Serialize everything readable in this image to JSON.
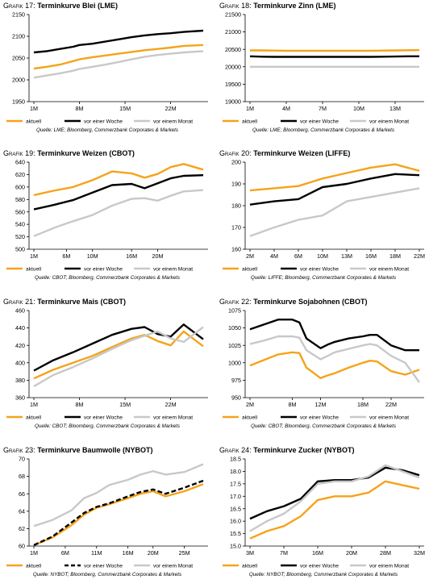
{
  "legend": {
    "labels": [
      "aktuell",
      "vor einer Woche",
      "vor einem Monat"
    ]
  },
  "colors": {
    "aktuell": "#f5a31a",
    "vor_einer_woche": "#000000",
    "vor_einem_monat": "#c8c8c8"
  },
  "chart_data": [
    {
      "type": "line",
      "prefix": "Grafik 17:",
      "title": "Terminkurve Blei (LME)",
      "source": "Quelle: LME; Bloomberg, Commerzbank Corporates & Markets",
      "ylim": [
        1950,
        2150
      ],
      "yticks": [
        "1950",
        "2000",
        "2050",
        "2100",
        "2150"
      ],
      "xlabels": [
        "1M",
        "8M",
        "15M",
        "22M"
      ],
      "xlabel_positions": [
        1,
        8,
        15,
        22
      ],
      "xlim": [
        1,
        27
      ],
      "series": [
        {
          "name": "aktuell",
          "x": [
            1,
            3,
            5,
            7,
            8,
            10,
            12,
            14,
            16,
            18,
            20,
            22,
            24,
            27
          ],
          "values": [
            2026,
            2030,
            2035,
            2043,
            2047,
            2052,
            2056,
            2060,
            2064,
            2068,
            2071,
            2074,
            2078,
            2080
          ]
        },
        {
          "name": "vor einer Woche",
          "x": [
            1,
            3,
            5,
            7,
            8,
            10,
            12,
            14,
            16,
            18,
            20,
            22,
            24,
            27
          ],
          "values": [
            2063,
            2066,
            2071,
            2076,
            2080,
            2083,
            2088,
            2093,
            2098,
            2102,
            2105,
            2107,
            2110,
            2113
          ]
        },
        {
          "name": "vor einem Monat",
          "x": [
            1,
            3,
            5,
            7,
            8,
            10,
            12,
            14,
            16,
            18,
            20,
            22,
            24,
            27
          ],
          "values": [
            2005,
            2010,
            2015,
            2021,
            2025,
            2030,
            2035,
            2041,
            2047,
            2053,
            2057,
            2060,
            2063,
            2066
          ]
        }
      ]
    },
    {
      "type": "line",
      "prefix": "Grafik 18:",
      "title": "Terminkurve Zinn (LME)",
      "source": "Quelle: LME; Bloomberg, Commerzbank Corporates & Markets",
      "ylim": [
        19000,
        21500
      ],
      "yticks": [
        "19000",
        "19500",
        "20000",
        "20500",
        "21000",
        "21500"
      ],
      "xlabels": [
        "1M",
        "4M",
        "7M",
        "10M",
        "13M"
      ],
      "xlabel_positions": [
        1,
        4,
        7,
        10,
        13
      ],
      "xlim": [
        1,
        15
      ],
      "series": [
        {
          "name": "aktuell",
          "x": [
            1,
            2,
            3,
            4,
            5,
            6,
            7,
            8,
            9,
            10,
            11,
            12,
            13,
            14,
            15
          ],
          "values": [
            20470,
            20470,
            20465,
            20460,
            20460,
            20460,
            20460,
            20460,
            20460,
            20460,
            20460,
            20465,
            20470,
            20475,
            20480
          ]
        },
        {
          "name": "vor einer Woche",
          "x": [
            1,
            2,
            3,
            4,
            5,
            6,
            7,
            8,
            9,
            10,
            11,
            12,
            13,
            14,
            15
          ],
          "values": [
            20300,
            20290,
            20285,
            20285,
            20285,
            20285,
            20285,
            20285,
            20285,
            20285,
            20285,
            20290,
            20295,
            20300,
            20300
          ]
        },
        {
          "name": "vor einem Monat",
          "x": [
            1,
            2,
            3,
            4,
            5,
            6,
            7,
            8,
            9,
            10,
            11,
            12,
            13,
            14,
            15
          ],
          "values": [
            20000,
            20000,
            20000,
            20000,
            20000,
            20000,
            20000,
            20000,
            20000,
            20000,
            20000,
            20000,
            20000,
            20000,
            20000
          ]
        }
      ]
    },
    {
      "type": "line",
      "prefix": "Grafik 19:",
      "title": "Terminkurve Weizen (CBOT)",
      "source": "Quelle: CBOT; Bloomberg, Commerzbank Corporates & Markets",
      "ylim": [
        500,
        640
      ],
      "yticks": [
        "500",
        "520",
        "540",
        "560",
        "580",
        "600",
        "620",
        "640"
      ],
      "xlabels": [
        "1M",
        "6M",
        "10M",
        "16M",
        "20M"
      ],
      "xlabel_positions": [
        1,
        6,
        10,
        16,
        20
      ],
      "xlim": [
        1,
        27
      ],
      "series": [
        {
          "name": "aktuell",
          "x": [
            1,
            4,
            7,
            10,
            13,
            16,
            18,
            20,
            22,
            24,
            27
          ],
          "values": [
            587,
            594,
            600,
            611,
            625,
            622,
            615,
            621,
            632,
            637,
            628
          ]
        },
        {
          "name": "vor einer Woche",
          "x": [
            1,
            4,
            7,
            10,
            13,
            16,
            18,
            20,
            22,
            24,
            27
          ],
          "values": [
            564,
            571,
            579,
            591,
            603,
            605,
            598,
            606,
            614,
            618,
            619
          ]
        },
        {
          "name": "vor einem Monat",
          "x": [
            1,
            4,
            7,
            10,
            13,
            16,
            18,
            20,
            22,
            24,
            27
          ],
          "values": [
            521,
            534,
            545,
            555,
            570,
            581,
            582,
            578,
            586,
            593,
            595
          ]
        }
      ]
    },
    {
      "type": "line",
      "prefix": "Grafik 20:",
      "title": "Terminkurve Weizen (LIFFE)",
      "source": "Quelle: LIFFE; Bloomberg, Commerzbank Corporates & Markets",
      "ylim": [
        160,
        200
      ],
      "yticks": [
        "160",
        "170",
        "180",
        "190",
        "200"
      ],
      "xlabels": [
        "2M",
        "4M",
        "6M",
        "10M",
        "13M",
        "16M",
        "18M",
        "22M"
      ],
      "xlabel_positions": [
        1,
        2,
        3,
        4,
        5,
        6,
        7,
        8
      ],
      "xlim": [
        1,
        8
      ],
      "series": [
        {
          "name": "aktuell",
          "x": [
            1,
            2,
            3,
            4,
            5,
            6,
            7,
            8
          ],
          "values": [
            187,
            188,
            189,
            192.5,
            195,
            197.5,
            199,
            196
          ]
        },
        {
          "name": "vor einer Woche",
          "x": [
            1,
            2,
            3,
            4,
            5,
            6,
            7,
            8
          ],
          "values": [
            180.5,
            182,
            183,
            188.5,
            190,
            192.5,
            194.5,
            194
          ]
        },
        {
          "name": "vor einem Monat",
          "x": [
            1,
            2,
            3,
            4,
            5,
            6,
            7,
            8
          ],
          "values": [
            166,
            170,
            173.5,
            175.5,
            182,
            184,
            186,
            188
          ]
        }
      ]
    },
    {
      "type": "line",
      "prefix": "Grafik 21:",
      "title": "Terminkurve Mais (CBOT)",
      "source": "Quelle: CBOT; Bloomberg, Commerzbank Corporates & Markets",
      "ylim": [
        360,
        460
      ],
      "yticks": [
        "360",
        "380",
        "400",
        "420",
        "440",
        "460"
      ],
      "xlabels": [
        "1M",
        "8M",
        "15M",
        "22M"
      ],
      "xlabel_positions": [
        1,
        8,
        15,
        22
      ],
      "xlim": [
        1,
        27
      ],
      "series": [
        {
          "name": "aktuell",
          "x": [
            1,
            4,
            7,
            10,
            13,
            16,
            18,
            20,
            22,
            24,
            27
          ],
          "values": [
            382,
            392,
            400,
            408,
            418,
            428,
            432,
            425,
            420,
            436,
            419
          ]
        },
        {
          "name": "vor einer Woche",
          "x": [
            1,
            4,
            7,
            10,
            13,
            16,
            18,
            20,
            22,
            24,
            27
          ],
          "values": [
            391,
            403,
            412,
            422,
            432,
            439,
            441,
            433,
            430,
            444,
            427
          ]
        },
        {
          "name": "vor einem Monat",
          "x": [
            1,
            4,
            7,
            10,
            13,
            16,
            18,
            20,
            22,
            24,
            27
          ],
          "values": [
            373,
            386,
            395,
            405,
            416,
            426,
            431,
            436,
            428,
            424,
            441
          ]
        }
      ]
    },
    {
      "type": "line",
      "prefix": "Grafik 22:",
      "title": "Terminkurve Sojabohnen (CBOT)",
      "source": "Quelle: CBOT; Bloomberg, Commerzbank Corporates & Markets",
      "ylim": [
        950,
        1075
      ],
      "yticks": [
        "950",
        "975",
        "1000",
        "1025",
        "1050",
        "1075"
      ],
      "xlabels": [
        "2M",
        "8M",
        "12M",
        "18M",
        "22M"
      ],
      "xlabel_positions": [
        2,
        8,
        12,
        18,
        22
      ],
      "xlim": [
        2,
        26
      ],
      "series": [
        {
          "name": "aktuell",
          "x": [
            2,
            4,
            6,
            8,
            9,
            10,
            12,
            13,
            14,
            16,
            18,
            19,
            20,
            22,
            24,
            26
          ],
          "values": [
            996,
            1004,
            1012,
            1015,
            1014,
            993,
            978,
            982,
            985,
            993,
            1000,
            1003,
            1002,
            988,
            983,
            990
          ]
        },
        {
          "name": "vor einer Woche",
          "x": [
            2,
            4,
            6,
            8,
            9,
            10,
            12,
            13,
            14,
            16,
            18,
            19,
            20,
            22,
            24,
            26
          ],
          "values": [
            1048,
            1055,
            1062,
            1062,
            1058,
            1035,
            1021,
            1026,
            1030,
            1035,
            1038,
            1040,
            1040,
            1025,
            1018,
            1018
          ]
        },
        {
          "name": "vor einem Monat",
          "x": [
            2,
            4,
            6,
            8,
            9,
            10,
            12,
            13,
            14,
            16,
            18,
            19,
            20,
            22,
            24,
            26
          ],
          "values": [
            1027,
            1032,
            1038,
            1038,
            1036,
            1018,
            1005,
            1010,
            1015,
            1020,
            1025,
            1027,
            1025,
            1010,
            1000,
            972
          ]
        }
      ]
    },
    {
      "type": "line",
      "prefix": "Grafik 23:",
      "title": "Terminkurve Baumwolle (NYBOT)",
      "source": "Quelle: NYBOT; Bloomberg, Commerzbank Corporates & Markets",
      "ylim": [
        60,
        70
      ],
      "yticks": [
        "60",
        "62",
        "64",
        "66",
        "68",
        "70"
      ],
      "xlabels": [
        "1M",
        "6M",
        "11M",
        "16M",
        "20M",
        "25M"
      ],
      "xlabel_positions": [
        1,
        6,
        11,
        16,
        20,
        25
      ],
      "xlim": [
        1,
        28
      ],
      "series": [
        {
          "name": "aktuell",
          "x": [
            1,
            4,
            7,
            9,
            11,
            13,
            16,
            18,
            20,
            22,
            25,
            28
          ],
          "values": [
            60.1,
            61.0,
            62.4,
            63.6,
            64.4,
            64.8,
            65.5,
            66.0,
            66.3,
            65.7,
            66.3,
            67.1
          ]
        },
        {
          "name": "vor einer Woche",
          "dashed": true,
          "x": [
            1,
            4,
            7,
            9,
            11,
            13,
            16,
            18,
            20,
            22,
            25,
            28
          ],
          "values": [
            60.1,
            61.1,
            62.7,
            63.8,
            64.5,
            64.9,
            65.7,
            66.2,
            66.5,
            66.0,
            66.7,
            67.5
          ]
        },
        {
          "name": "vor einem Monat",
          "x": [
            1,
            4,
            7,
            9,
            11,
            13,
            16,
            18,
            20,
            22,
            25,
            28
          ],
          "values": [
            62.3,
            63.0,
            64.1,
            65.5,
            66.1,
            67.0,
            67.6,
            68.2,
            68.6,
            68.2,
            68.5,
            69.4
          ]
        }
      ]
    },
    {
      "type": "line",
      "prefix": "Grafik 24:",
      "title": "Terminkurve Zucker (NYBOT)",
      "source": "Quelle: NYBOT; Bloomberg, Commerzbank Corporates & Markets",
      "ylim": [
        15.0,
        18.5
      ],
      "yticks": [
        "15.0",
        "15.5",
        "16.0",
        "16.5",
        "17.0",
        "17.5",
        "18.0",
        "18.5"
      ],
      "xlabels": [
        "3M",
        "7M",
        "16M",
        "20M",
        "28M",
        "32M"
      ],
      "xlabel_positions": [
        1,
        2,
        3,
        4,
        5,
        6
      ],
      "xlim": [
        1,
        6
      ],
      "series": [
        {
          "name": "aktuell",
          "x": [
            1,
            1.5,
            2,
            2.5,
            3,
            3.5,
            4,
            4.5,
            5,
            5.5,
            6
          ],
          "values": [
            15.3,
            15.6,
            15.8,
            16.2,
            16.85,
            17.0,
            17.0,
            17.15,
            17.6,
            17.45,
            17.3
          ]
        },
        {
          "name": "vor einer Woche",
          "x": [
            1,
            1.5,
            2,
            2.5,
            3,
            3.5,
            4,
            4.5,
            5,
            5.5,
            6
          ],
          "values": [
            16.1,
            16.4,
            16.6,
            16.9,
            17.6,
            17.65,
            17.65,
            17.75,
            18.15,
            18.05,
            17.85
          ]
        },
        {
          "name": "vor einem Monat",
          "x": [
            1,
            1.5,
            2,
            2.5,
            3,
            3.5,
            4,
            4.5,
            5,
            5.5,
            6
          ],
          "values": [
            15.6,
            16.0,
            16.3,
            16.8,
            17.5,
            17.6,
            17.6,
            17.8,
            18.25,
            18.0,
            17.75
          ]
        }
      ]
    }
  ]
}
